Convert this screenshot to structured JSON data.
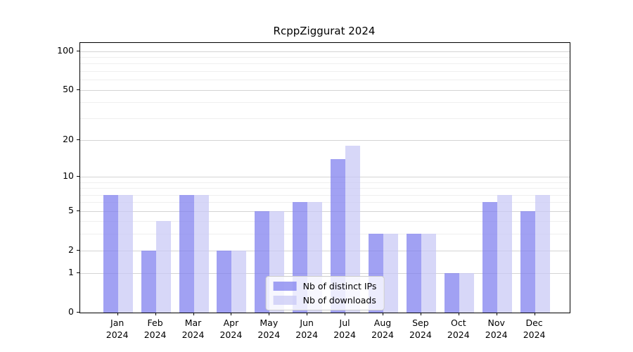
{
  "chart_data": {
    "type": "bar",
    "title": "RcppZiggurat 2024",
    "months": [
      "Jan",
      "Feb",
      "Mar",
      "Apr",
      "May",
      "Jun",
      "Jul",
      "Aug",
      "Sep",
      "Oct",
      "Nov",
      "Dec"
    ],
    "year_label": "2024",
    "series": [
      {
        "name": "Nb of distinct IPs",
        "color": "rgba(125,125,238,0.72)",
        "values": [
          7,
          2,
          7,
          2,
          5,
          6,
          14,
          3,
          3,
          1,
          6,
          5
        ]
      },
      {
        "name": "Nb of downloads",
        "color": "rgba(200,200,245,0.72)",
        "values": [
          7,
          4,
          7,
          2,
          5,
          6,
          18,
          3,
          3,
          1,
          7,
          7
        ]
      }
    ],
    "scale": "log1p",
    "ylim": [
      0,
      115.6
    ],
    "yticks": [
      0,
      1,
      2,
      5,
      10,
      20,
      50,
      100
    ],
    "minor_yticks": [
      3,
      4,
      6,
      7,
      8,
      9,
      30,
      40,
      60,
      70,
      80,
      90
    ],
    "grid": true,
    "legend_position": "lower center",
    "colors": {
      "major_grid": "#d4d4d4",
      "minor_grid": "#efefef",
      "spine": "#000000"
    }
  }
}
